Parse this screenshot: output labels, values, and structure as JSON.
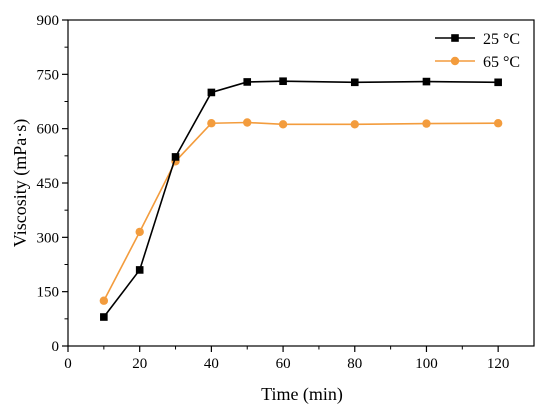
{
  "chart_data": {
    "type": "line",
    "title": "",
    "xlabel": "Time (min)",
    "ylabel": "Viscosity (mPa·s)",
    "xlim": [
      0,
      130
    ],
    "ylim": [
      0,
      900
    ],
    "xticks": [
      0,
      20,
      40,
      60,
      80,
      100,
      120
    ],
    "yticks": [
      0,
      150,
      300,
      450,
      600,
      750,
      900
    ],
    "x": [
      10,
      20,
      30,
      40,
      50,
      60,
      80,
      100,
      120
    ],
    "grid": false,
    "legend_position": "top-right",
    "series": [
      {
        "name": "25 °C",
        "color": "#000000",
        "marker": "square",
        "values": [
          80,
          210,
          522,
          700,
          729,
          731,
          728,
          730,
          728
        ]
      },
      {
        "name": "65 °C",
        "color": "#f39c3d",
        "marker": "circle",
        "values": [
          125,
          315,
          510,
          615,
          617,
          612,
          612,
          614,
          615
        ]
      }
    ]
  }
}
